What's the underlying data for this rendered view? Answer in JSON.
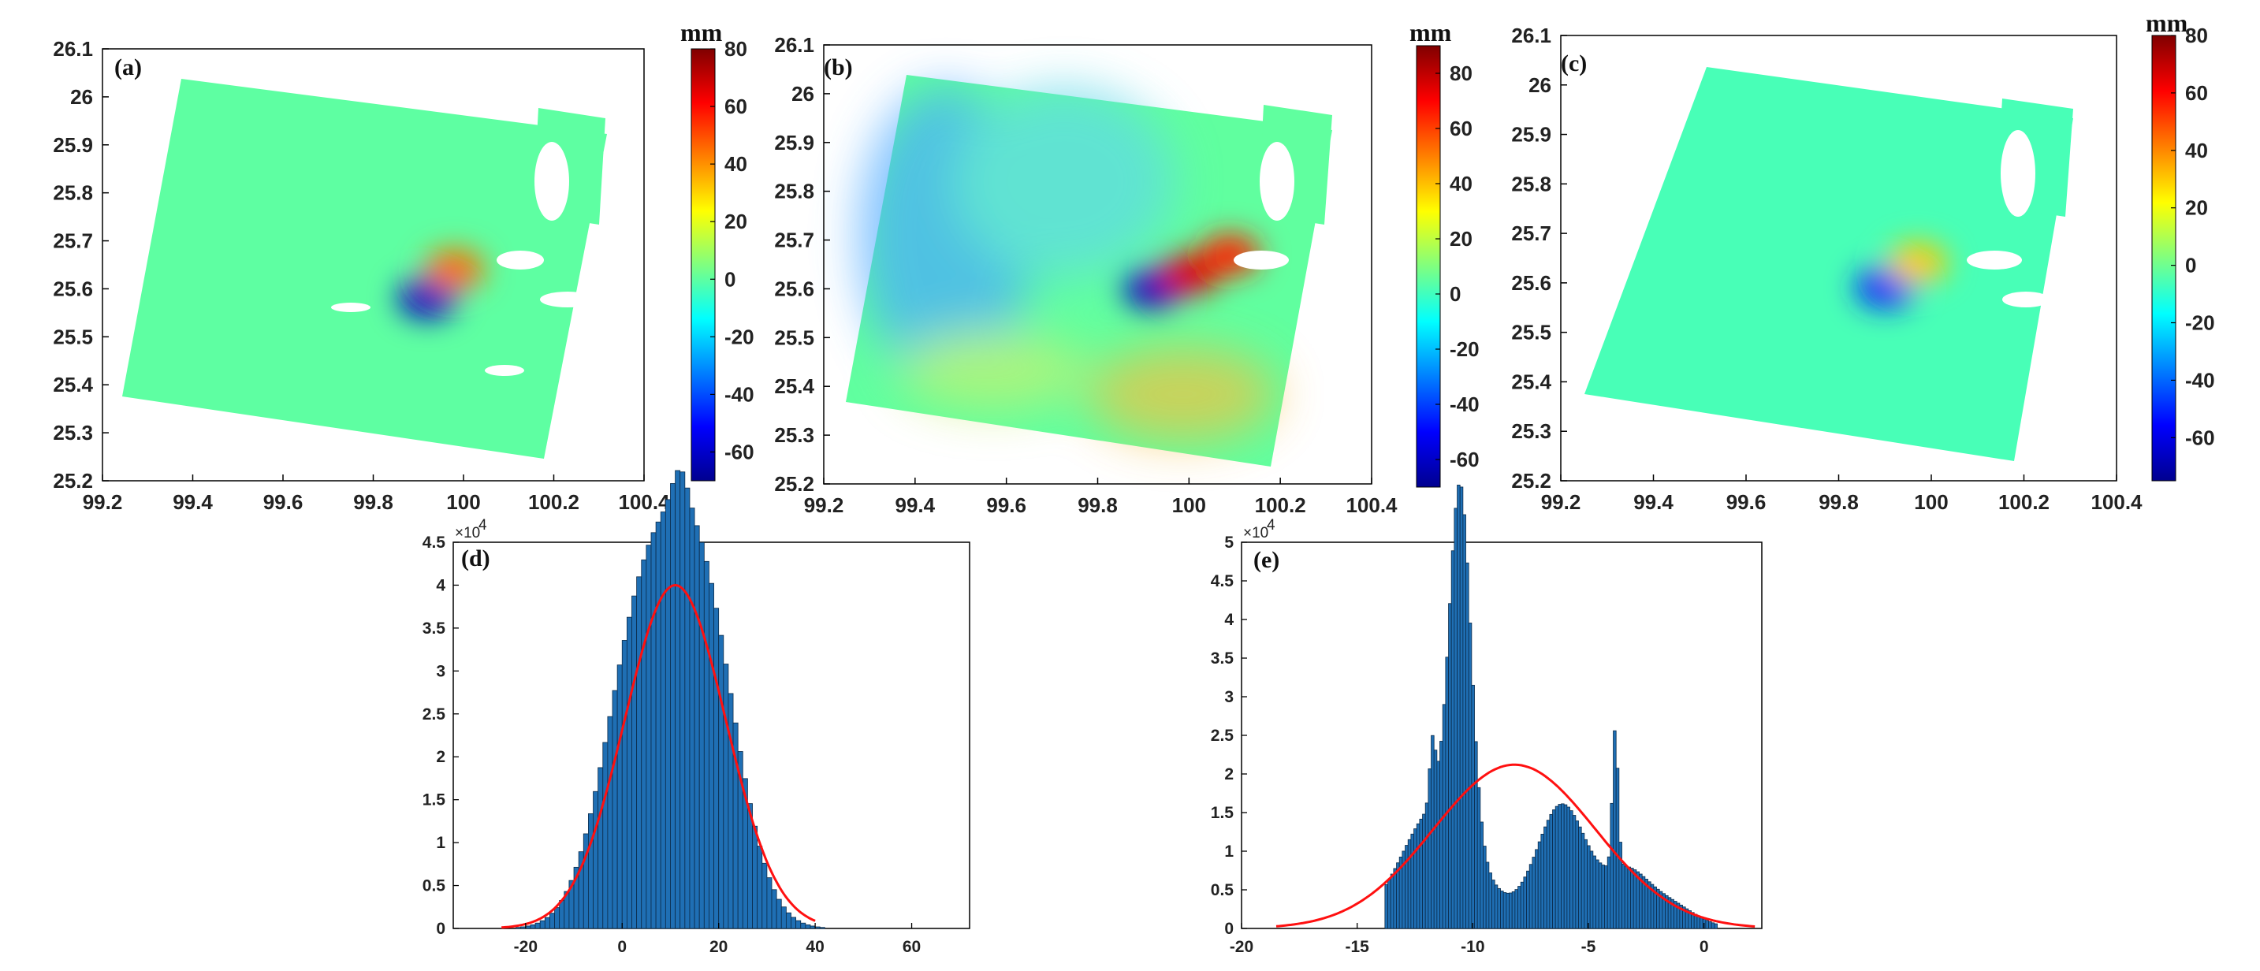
{
  "chart_data": [
    {
      "id": "a",
      "type": "heatmap",
      "panel_label": "(a)",
      "xlim": [
        99.2,
        100.4
      ],
      "ylim": [
        25.2,
        26.1
      ],
      "xticks": [
        "99.2",
        "99.4",
        "99.6",
        "99.8",
        "100",
        "100.2",
        "100.4"
      ],
      "yticks": [
        "25.2",
        "25.3",
        "25.4",
        "25.5",
        "25.6",
        "25.7",
        "25.8",
        "25.9",
        "26",
        "26.1"
      ],
      "colorbar": {
        "label": "mm",
        "ticks": [
          "80",
          "60",
          "40",
          "20",
          "0",
          "-20",
          "-40",
          "-60"
        ],
        "range": [
          -70,
          80
        ]
      },
      "background_value": 0,
      "features": [
        {
          "lon": 99.92,
          "lat": 25.58,
          "value": -60
        },
        {
          "lon": 99.98,
          "lat": 25.64,
          "value": 45
        }
      ]
    },
    {
      "id": "b",
      "type": "heatmap",
      "panel_label": "(b)",
      "xlim": [
        99.2,
        100.4
      ],
      "ylim": [
        25.2,
        26.1
      ],
      "xticks": [
        "99.2",
        "99.4",
        "99.6",
        "99.8",
        "100",
        "100.2",
        "100.4"
      ],
      "yticks": [
        "25.2",
        "25.3",
        "25.4",
        "25.5",
        "25.6",
        "25.7",
        "25.8",
        "25.9",
        "26",
        "26.1"
      ],
      "colorbar": {
        "label": "mm",
        "ticks": [
          "80",
          "60",
          "40",
          "20",
          "0",
          "-20",
          "-40",
          "-60"
        ],
        "range": [
          -70,
          90
        ]
      },
      "background_value": 5,
      "features": [
        {
          "lon": 99.92,
          "lat": 25.6,
          "value": -60
        },
        {
          "lon": 100.0,
          "lat": 25.63,
          "value": 75
        },
        {
          "lon": 100.09,
          "lat": 25.67,
          "value": 65
        }
      ]
    },
    {
      "id": "c",
      "type": "heatmap",
      "panel_label": "(c)",
      "xlim": [
        99.2,
        100.4
      ],
      "ylim": [
        25.2,
        26.1
      ],
      "xticks": [
        "99.2",
        "99.4",
        "99.6",
        "99.8",
        "100",
        "100.2",
        "100.4"
      ],
      "yticks": [
        "25.2",
        "25.3",
        "25.4",
        "25.5",
        "25.6",
        "25.7",
        "25.8",
        "25.9",
        "26",
        "26.1"
      ],
      "colorbar": {
        "label": "mm",
        "ticks": [
          "80",
          "60",
          "40",
          "20",
          "0",
          "-20",
          "-40",
          "-60"
        ],
        "range": [
          -75,
          80
        ]
      },
      "background_value": -6,
      "features": [
        {
          "lon": 99.9,
          "lat": 25.59,
          "value": -50
        },
        {
          "lon": 99.97,
          "lat": 25.64,
          "value": 30
        }
      ]
    },
    {
      "id": "d",
      "type": "bar",
      "panel_label": "(d)",
      "xlim": [
        -35,
        72
      ],
      "ylim": [
        0,
        45000
      ],
      "xticks": [
        "-20",
        "0",
        "20",
        "40",
        "60"
      ],
      "yticks": [
        "0",
        "0.5",
        "1",
        "1.5",
        "2",
        "2.5",
        "3",
        "3.5",
        "4",
        "4.5"
      ],
      "y_multiplier": "×10",
      "y_exponent": "4",
      "bin_width": 1,
      "gaussian_fit": {
        "mean": 11,
        "std": 10.5,
        "peak": 40000,
        "range": [
          -25,
          40
        ]
      },
      "histogram_shape": [
        {
          "center": 3,
          "width": 7.5,
          "peak": 31500
        },
        {
          "center": 15.5,
          "width": 7.5,
          "peak": 38000
        },
        {
          "center": 11.5,
          "width": 1.5,
          "peak": 4000
        }
      ]
    },
    {
      "id": "e",
      "type": "bar",
      "panel_label": "(e)",
      "xlim": [
        -20,
        2.5
      ],
      "ylim": [
        0,
        50000
      ],
      "xticks": [
        "-20",
        "-15",
        "-10",
        "-5",
        "0"
      ],
      "yticks": [
        "0",
        "0.5",
        "1",
        "1.5",
        "2",
        "2.5",
        "3",
        "3.5",
        "4",
        "4.5",
        "5"
      ],
      "y_multiplier": "×10",
      "y_exponent": "4",
      "bin_width": 0.125,
      "gaussian_fit": {
        "mean": -8.2,
        "std": 3.5,
        "peak": 21200,
        "range": [
          -18.5,
          2.2
        ]
      },
      "histogram_shape": [
        {
          "center": -11.5,
          "width": 1.6,
          "peak": 16000
        },
        {
          "center": -10.6,
          "width": 0.45,
          "peak": 44000
        },
        {
          "center": -11.8,
          "width": 0.12,
          "peak": 8000
        },
        {
          "center": -6.2,
          "width": 1.1,
          "peak": 16000
        },
        {
          "center": -3.9,
          "width": 0.12,
          "peak": 18000
        },
        {
          "center": -3.5,
          "width": 0.9,
          "peak": 6000
        },
        {
          "center": -1.8,
          "width": 1.2,
          "peak": 3500
        }
      ]
    }
  ]
}
